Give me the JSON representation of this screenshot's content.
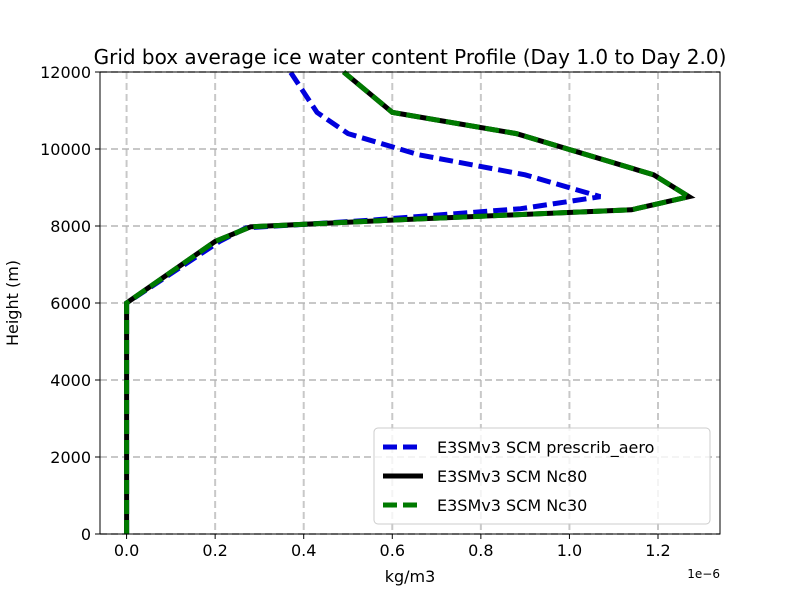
{
  "chart_data": {
    "type": "line",
    "title": "Grid box average ice water content Profile (Day 1.0 to Day 2.0)",
    "xlabel": "kg/m3",
    "ylabel": "Height (m)",
    "x_offset_label": "1e−6",
    "xlim": [
      -0.06,
      1.34
    ],
    "ylim": [
      0,
      12000
    ],
    "xticks": [
      0.0,
      0.2,
      0.4,
      0.6,
      0.8,
      1.0,
      1.2
    ],
    "xtick_labels": [
      "0.0",
      "0.2",
      "0.4",
      "0.6",
      "0.8",
      "1.0",
      "1.2"
    ],
    "yticks": [
      0,
      2000,
      4000,
      6000,
      8000,
      10000,
      12000
    ],
    "ytick_labels": [
      "0",
      "2000",
      "4000",
      "6000",
      "8000",
      "10000",
      "12000"
    ],
    "grid": true,
    "legend_position": "lower-right",
    "series": [
      {
        "name": "E3SMv3 SCM prescrib_aero",
        "color": "#0000dd",
        "style": "dashed",
        "x": [
          0.0,
          0.0,
          0.0,
          0.0,
          0.0,
          0.0,
          0.0,
          0.21,
          0.27,
          0.55,
          0.89,
          1.07,
          0.9,
          0.66,
          0.5,
          0.43,
          0.37
        ],
        "y": [
          0,
          1000,
          2000,
          3000,
          4000,
          5000,
          6000,
          7600,
          7950,
          8150,
          8450,
          8760,
          9330,
          9850,
          10400,
          10950,
          12000
        ]
      },
      {
        "name": "E3SMv3 SCM Nc80",
        "color": "#000000",
        "style": "solid",
        "x": [
          0.0,
          0.0,
          0.0,
          0.0,
          0.0,
          0.0,
          0.0,
          0.2,
          0.28,
          0.65,
          1.14,
          1.27,
          1.19,
          0.88,
          0.6,
          0.49
        ],
        "y": [
          0,
          1000,
          2000,
          3000,
          4000,
          5000,
          6000,
          7600,
          7980,
          8180,
          8420,
          8760,
          9330,
          10400,
          10950,
          12000
        ]
      },
      {
        "name": "E3SMv3 SCM Nc30",
        "color": "#007a00",
        "style": "dashed",
        "x": [
          0.0,
          0.0,
          0.0,
          0.0,
          0.0,
          0.0,
          0.0,
          0.2,
          0.28,
          0.65,
          1.14,
          1.27,
          1.19,
          0.88,
          0.6,
          0.49
        ],
        "y": [
          0,
          1000,
          2000,
          3000,
          4000,
          5000,
          6000,
          7600,
          7980,
          8180,
          8420,
          8760,
          9330,
          10400,
          10950,
          12000
        ]
      }
    ]
  }
}
